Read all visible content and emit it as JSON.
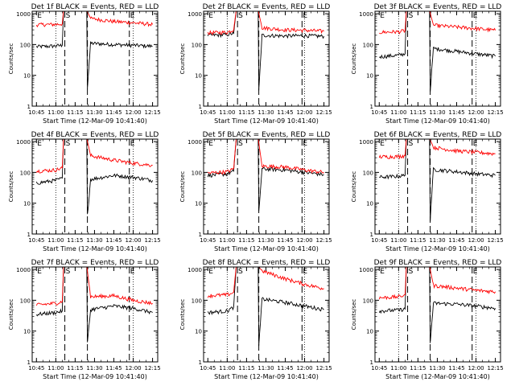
{
  "chart_data": [
    {
      "type": "line",
      "title": "Det 1f BLACK = Events, RED = LLD",
      "xlabel": "Start Time (12-Mar-09 10:41:40)",
      "ylabel": "Counts/sec",
      "x_ticks": [
        "10:45",
        "11:00",
        "11:15",
        "11:30",
        "11:45",
        "12:00",
        "12:15"
      ],
      "y_ticks": [
        "1",
        "10",
        "100",
        "1000"
      ],
      "markers": [
        {
          "label": "E",
          "time": "10:45"
        },
        {
          "label": "S",
          "time": "11:07"
        },
        {
          "label": "E",
          "time": "11:57"
        }
      ],
      "series": [
        {
          "color": "#000000",
          "points": [
            [
              "10:45",
              85
            ],
            [
              "11:00",
              90
            ],
            [
              "11:05",
              95
            ],
            [
              "11:06",
              1300
            ],
            [
              "11:24",
              1300
            ],
            [
              "11:24.5",
              4
            ],
            [
              "11:27",
              110
            ],
            [
              "11:45",
              100
            ],
            [
              "12:00",
              95
            ],
            [
              "12:15",
              88
            ]
          ]
        },
        {
          "color": "#ff0000",
          "points": [
            [
              "10:45",
              440
            ],
            [
              "11:00",
              450
            ],
            [
              "11:05",
              470
            ],
            [
              "11:06",
              1300
            ],
            [
              "11:24",
              1300
            ],
            [
              "11:27",
              700
            ],
            [
              "11:45",
              560
            ],
            [
              "12:00",
              510
            ],
            [
              "12:15",
              450
            ]
          ]
        }
      ]
    },
    {
      "type": "line",
      "title": "Det 2f BLACK = Events, RED = LLD",
      "xlabel": "Start Time (12-Mar-09 10:41:40)",
      "ylabel": "Counts/sec",
      "x_ticks": [
        "10:45",
        "11:00",
        "11:15",
        "11:30",
        "11:45",
        "12:00",
        "12:15"
      ],
      "y_ticks": [
        "1",
        "10",
        "100",
        "1000"
      ],
      "markers": [
        {
          "label": "E",
          "time": "10:45"
        },
        {
          "label": "S",
          "time": "11:08"
        },
        {
          "label": "E",
          "time": "11:58"
        }
      ],
      "series": [
        {
          "color": "#000000",
          "points": [
            [
              "10:45",
              200
            ],
            [
              "11:00",
              210
            ],
            [
              "11:05",
              230
            ],
            [
              "11:07",
              1300
            ],
            [
              "11:24",
              1300
            ],
            [
              "11:24.5",
              3
            ],
            [
              "11:27",
              200
            ],
            [
              "11:45",
              190
            ],
            [
              "12:00",
              195
            ],
            [
              "12:15",
              185
            ]
          ]
        },
        {
          "color": "#ff0000",
          "points": [
            [
              "10:45",
              240
            ],
            [
              "11:00",
              250
            ],
            [
              "11:05",
              300
            ],
            [
              "11:07",
              1300
            ],
            [
              "11:24",
              1300
            ],
            [
              "11:27",
              350
            ],
            [
              "11:45",
              300
            ],
            [
              "12:00",
              290
            ],
            [
              "12:15",
              270
            ]
          ]
        }
      ]
    },
    {
      "type": "line",
      "title": "Det 3f BLACK = Events, RED = LLD",
      "xlabel": "Start Time (12-Mar-09 10:41:40)",
      "ylabel": "Counts/sec",
      "x_ticks": [
        "10:45",
        "11:00",
        "11:15",
        "11:30",
        "11:45",
        "12:00",
        "12:15"
      ],
      "y_ticks": [
        "1",
        "10",
        "100",
        "1000"
      ],
      "markers": [
        {
          "label": "E",
          "time": "10:45"
        },
        {
          "label": "S",
          "time": "11:07"
        },
        {
          "label": "E",
          "time": "11:57"
        }
      ],
      "series": [
        {
          "color": "#000000",
          "points": [
            [
              "10:45",
              40
            ],
            [
              "11:00",
              45
            ],
            [
              "11:05",
              50
            ],
            [
              "11:06",
              1300
            ],
            [
              "11:24",
              1300
            ],
            [
              "11:24.5",
              3
            ],
            [
              "11:27",
              75
            ],
            [
              "11:45",
              60
            ],
            [
              "12:00",
              50
            ],
            [
              "12:15",
              42
            ]
          ]
        },
        {
          "color": "#ff0000",
          "points": [
            [
              "10:45",
              250
            ],
            [
              "11:00",
              260
            ],
            [
              "11:05",
              280
            ],
            [
              "11:06",
              1300
            ],
            [
              "11:24",
              1300
            ],
            [
              "11:27",
              420
            ],
            [
              "11:45",
              370
            ],
            [
              "12:00",
              330
            ],
            [
              "12:15",
              290
            ]
          ]
        }
      ]
    },
    {
      "type": "line",
      "title": "Det 4f BLACK = Events, RED = LLD",
      "xlabel": "Start Time (12-Mar-09 10:41:40)",
      "ylabel": "Counts/sec",
      "x_ticks": [
        "10:45",
        "11:00",
        "11:15",
        "11:30",
        "11:45",
        "12:00",
        "12:15"
      ],
      "y_ticks": [
        "1",
        "10",
        "100",
        "1000"
      ],
      "markers": [
        {
          "label": "E",
          "time": "10:45"
        },
        {
          "label": "S",
          "time": "11:07"
        },
        {
          "label": "E",
          "time": "11:57"
        }
      ],
      "series": [
        {
          "color": "#000000",
          "points": [
            [
              "10:45",
              45
            ],
            [
              "11:00",
              55
            ],
            [
              "11:05",
              65
            ],
            [
              "11:06",
              1300
            ],
            [
              "11:24",
              1300
            ],
            [
              "11:24.5",
              4
            ],
            [
              "11:27",
              60
            ],
            [
              "11:45",
              80
            ],
            [
              "12:00",
              70
            ],
            [
              "12:15",
              55
            ]
          ]
        },
        {
          "color": "#ff0000",
          "points": [
            [
              "10:45",
              110
            ],
            [
              "11:00",
              120
            ],
            [
              "11:05",
              140
            ],
            [
              "11:06",
              1300
            ],
            [
              "11:24",
              1300
            ],
            [
              "11:27",
              350
            ],
            [
              "11:45",
              250
            ],
            [
              "12:00",
              200
            ],
            [
              "12:15",
              170
            ]
          ]
        }
      ]
    },
    {
      "type": "line",
      "title": "Det 5f BLACK = Events, RED = LLD",
      "xlabel": "Start Time (12-Mar-09 10:41:40)",
      "ylabel": "Counts/sec",
      "x_ticks": [
        "10:45",
        "11:00",
        "11:15",
        "11:30",
        "11:45",
        "12:00",
        "12:15"
      ],
      "y_ticks": [
        "1",
        "10",
        "100",
        "1000"
      ],
      "markers": [
        {
          "label": "E",
          "time": "10:45"
        },
        {
          "label": "S",
          "time": "11:08"
        },
        {
          "label": "E",
          "time": "11:58"
        }
      ],
      "series": [
        {
          "color": "#000000",
          "points": [
            [
              "10:45",
              80
            ],
            [
              "11:00",
              90
            ],
            [
              "11:05",
              110
            ],
            [
              "11:07",
              1300
            ],
            [
              "11:24",
              1300
            ],
            [
              "11:24.5",
              5
            ],
            [
              "11:27",
              130
            ],
            [
              "11:45",
              120
            ],
            [
              "12:00",
              100
            ],
            [
              "12:15",
              85
            ]
          ]
        },
        {
          "color": "#ff0000",
          "points": [
            [
              "10:45",
              95
            ],
            [
              "11:00",
              105
            ],
            [
              "11:05",
              130
            ],
            [
              "11:07",
              1300
            ],
            [
              "11:24",
              1300
            ],
            [
              "11:27",
              160
            ],
            [
              "11:45",
              150
            ],
            [
              "12:00",
              120
            ],
            [
              "12:15",
              100
            ]
          ]
        }
      ]
    },
    {
      "type": "line",
      "title": "Det 6f BLACK = Events, RED = LLD",
      "xlabel": "Start Time (12-Mar-09 10:41:40)",
      "ylabel": "Counts/sec",
      "x_ticks": [
        "10:45",
        "11:00",
        "11:15",
        "11:30",
        "11:45",
        "12:00",
        "12:15"
      ],
      "y_ticks": [
        "1",
        "10",
        "100",
        "1000"
      ],
      "markers": [
        {
          "label": "E",
          "time": "10:45"
        },
        {
          "label": "S",
          "time": "11:07"
        },
        {
          "label": "E",
          "time": "11:57"
        }
      ],
      "series": [
        {
          "color": "#000000",
          "points": [
            [
              "10:45",
              70
            ],
            [
              "11:00",
              75
            ],
            [
              "11:05",
              80
            ],
            [
              "11:06",
              1300
            ],
            [
              "11:24",
              1300
            ],
            [
              "11:24.5",
              3
            ],
            [
              "11:27",
              125
            ],
            [
              "11:45",
              105
            ],
            [
              "12:00",
              90
            ],
            [
              "12:15",
              80
            ]
          ]
        },
        {
          "color": "#ff0000",
          "points": [
            [
              "10:45",
              320
            ],
            [
              "11:00",
              330
            ],
            [
              "11:05",
              350
            ],
            [
              "11:06",
              1300
            ],
            [
              "11:24",
              1300
            ],
            [
              "11:27",
              650
            ],
            [
              "11:45",
              500
            ],
            [
              "12:00",
              450
            ],
            [
              "12:15",
              400
            ]
          ]
        }
      ]
    },
    {
      "type": "line",
      "title": "Det 7f BLACK = Events, RED = LLD",
      "xlabel": "Start Time (12-Mar-09 10:41:40)",
      "ylabel": "Counts/sec",
      "x_ticks": [
        "10:45",
        "11:00",
        "11:15",
        "11:30",
        "11:45",
        "12:00",
        "12:15"
      ],
      "y_ticks": [
        "1",
        "10",
        "100",
        "1000"
      ],
      "markers": [
        {
          "label": "E",
          "time": "10:45"
        },
        {
          "label": "S",
          "time": "11:07"
        },
        {
          "label": "E",
          "time": "11:57"
        }
      ],
      "series": [
        {
          "color": "#000000",
          "points": [
            [
              "10:45",
              35
            ],
            [
              "11:00",
              40
            ],
            [
              "11:05",
              45
            ],
            [
              "11:06",
              1300
            ],
            [
              "11:24",
              1300
            ],
            [
              "11:24.5",
              4
            ],
            [
              "11:27",
              50
            ],
            [
              "11:45",
              65
            ],
            [
              "12:00",
              55
            ],
            [
              "12:15",
              40
            ]
          ]
        },
        {
          "color": "#ff0000",
          "points": [
            [
              "10:45",
              70
            ],
            [
              "11:00",
              80
            ],
            [
              "11:05",
              90
            ],
            [
              "11:06",
              1300
            ],
            [
              "11:24",
              1300
            ],
            [
              "11:27",
              130
            ],
            [
              "11:45",
              140
            ],
            [
              "12:00",
              100
            ],
            [
              "12:15",
              80
            ]
          ]
        }
      ]
    },
    {
      "type": "line",
      "title": "Det 8f BLACK = Events, RED = LLD",
      "xlabel": "Start Time (12-Mar-09 10:41:40)",
      "ylabel": "Counts/sec",
      "x_ticks": [
        "10:45",
        "11:00",
        "11:15",
        "11:30",
        "11:45",
        "12:00",
        "12:15"
      ],
      "y_ticks": [
        "1",
        "10",
        "100",
        "1000"
      ],
      "markers": [
        {
          "label": "E",
          "time": "10:45"
        },
        {
          "label": "S",
          "time": "11:08"
        },
        {
          "label": "E",
          "time": "11:58"
        }
      ],
      "series": [
        {
          "color": "#000000",
          "points": [
            [
              "10:45",
              40
            ],
            [
              "11:00",
              45
            ],
            [
              "11:05",
              60
            ],
            [
              "11:07",
              1300
            ],
            [
              "11:24",
              1300
            ],
            [
              "11:24.5",
              3
            ],
            [
              "11:27",
              110
            ],
            [
              "11:45",
              85
            ],
            [
              "12:00",
              65
            ],
            [
              "12:15",
              50
            ]
          ]
        },
        {
          "color": "#ff0000",
          "points": [
            [
              "10:45",
              140
            ],
            [
              "11:00",
              150
            ],
            [
              "11:05",
              180
            ],
            [
              "11:07",
              1300
            ],
            [
              "11:24",
              1300
            ],
            [
              "11:27",
              900
            ],
            [
              "11:45",
              500
            ],
            [
              "12:00",
              330
            ],
            [
              "12:15",
              240
            ]
          ]
        }
      ]
    },
    {
      "type": "line",
      "title": "Det 9f BLACK = Events, RED = LLD",
      "xlabel": "Start Time (12-Mar-09 10:41:40)",
      "ylabel": "Counts/sec",
      "x_ticks": [
        "10:45",
        "11:00",
        "11:15",
        "11:30",
        "11:45",
        "12:00",
        "12:15"
      ],
      "y_ticks": [
        "1",
        "10",
        "100",
        "1000"
      ],
      "markers": [
        {
          "label": "E",
          "time": "10:45"
        },
        {
          "label": "S",
          "time": "11:07"
        },
        {
          "label": "E",
          "time": "11:57"
        }
      ],
      "series": [
        {
          "color": "#000000",
          "points": [
            [
              "10:45",
              45
            ],
            [
              "11:00",
              48
            ],
            [
              "11:05",
              52
            ],
            [
              "11:06",
              1300
            ],
            [
              "11:24",
              1300
            ],
            [
              "11:24.5",
              4
            ],
            [
              "11:27",
              80
            ],
            [
              "11:45",
              75
            ],
            [
              "12:00",
              65
            ],
            [
              "12:15",
              55
            ]
          ]
        },
        {
          "color": "#ff0000",
          "points": [
            [
              "10:45",
              120
            ],
            [
              "11:00",
              130
            ],
            [
              "11:05",
              150
            ],
            [
              "11:06",
              1300
            ],
            [
              "11:24",
              1300
            ],
            [
              "11:27",
              300
            ],
            [
              "11:45",
              250
            ],
            [
              "12:00",
              210
            ],
            [
              "12:15",
              190
            ]
          ]
        }
      ]
    }
  ]
}
